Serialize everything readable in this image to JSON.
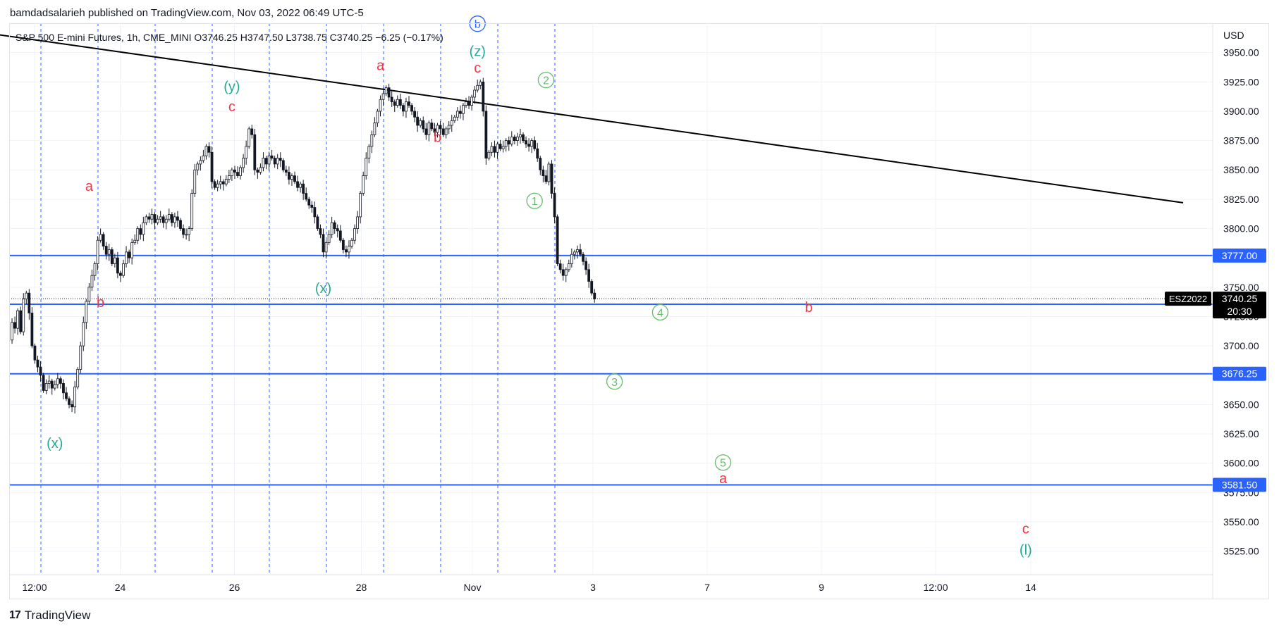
{
  "header": {
    "published": "bamdadsalarieh published on TradingView.com, Nov 03, 2022 06:49 UTC-5"
  },
  "legend": {
    "symbol": "S&P 500 E-mini Futures, 1h, CME_MINI",
    "open": "O3746.25",
    "high": "H3747.50",
    "low": "L3738.75",
    "close": "C3740.25",
    "change": "−6.25 (−0.17%)"
  },
  "footer": {
    "brand": "TradingView",
    "logo_icon": "tradingview-logo-icon"
  },
  "colors": {
    "candle": "#131722",
    "hline": "#2962ff",
    "trendline": "#000000",
    "vline": "#2962ff",
    "label_red": "#f23645",
    "label_teal": "#22ab94",
    "label_green": "#66bb6a",
    "label_blue": "#2962ff",
    "grid": "#f0f3fa"
  },
  "chart_data": {
    "type": "candlestick",
    "currency": "USD",
    "y_range": [
      3505,
      3975
    ],
    "y_ticks": [
      3525,
      3550,
      3575,
      3600,
      3625,
      3650,
      3675,
      3700,
      3725,
      3750,
      3775,
      3800,
      3825,
      3850,
      3875,
      3900,
      3925,
      3950,
      3975
    ],
    "x_ticks": [
      "12:00",
      "24",
      "26",
      "28",
      "Nov",
      "3",
      "7",
      "9",
      "12:00",
      "14"
    ],
    "last_price": {
      "symbol": "ESZ2022",
      "value": "3740.25",
      "countdown": "20:30"
    },
    "horizontal_levels": [
      3777.0,
      3735.5,
      3676.25,
      3581.5
    ],
    "horizontal_level_labels": [
      "3777.00",
      "3735.50",
      "3676.25",
      "3581.50"
    ],
    "trendline": {
      "start": [
        -0.4,
        3967
      ],
      "end": [
        18.5,
        3822
      ]
    },
    "vertical_lines_day": [
      0.5,
      1.5,
      2.5,
      3.5,
      4.5,
      5.5,
      6.5,
      7.5,
      8.5,
      9.5
    ],
    "candles_close_path": [
      [
        0.0,
        3705
      ],
      [
        0.05,
        3720
      ],
      [
        0.1,
        3715
      ],
      [
        0.15,
        3730
      ],
      [
        0.2,
        3712
      ],
      [
        0.25,
        3740
      ],
      [
        0.3,
        3745
      ],
      [
        0.35,
        3728
      ],
      [
        0.4,
        3700
      ],
      [
        0.45,
        3688
      ],
      [
        0.5,
        3682
      ],
      [
        0.55,
        3675
      ],
      [
        0.6,
        3662
      ],
      [
        0.65,
        3668
      ],
      [
        0.7,
        3670
      ],
      [
        0.75,
        3664
      ],
      [
        0.8,
        3667
      ],
      [
        0.85,
        3672
      ],
      [
        0.9,
        3668
      ],
      [
        0.95,
        3660
      ],
      [
        1.0,
        3655
      ],
      [
        1.05,
        3650
      ],
      [
        1.1,
        3648
      ],
      [
        1.15,
        3665
      ],
      [
        1.2,
        3680
      ],
      [
        1.25,
        3700
      ],
      [
        1.3,
        3720
      ],
      [
        1.35,
        3738
      ],
      [
        1.4,
        3750
      ],
      [
        1.45,
        3760
      ],
      [
        1.5,
        3770
      ],
      [
        1.55,
        3790
      ],
      [
        1.6,
        3795
      ],
      [
        1.65,
        3785
      ],
      [
        1.7,
        3778
      ],
      [
        1.75,
        3782
      ],
      [
        1.8,
        3770
      ],
      [
        1.85,
        3775
      ],
      [
        1.9,
        3762
      ],
      [
        1.95,
        3760
      ],
      [
        2.0,
        3770
      ],
      [
        2.05,
        3780
      ],
      [
        2.1,
        3775
      ],
      [
        2.15,
        3788
      ],
      [
        2.2,
        3790
      ],
      [
        2.25,
        3800
      ],
      [
        2.3,
        3795
      ],
      [
        2.35,
        3805
      ],
      [
        2.4,
        3810
      ],
      [
        2.45,
        3808
      ],
      [
        2.5,
        3812
      ],
      [
        2.55,
        3805
      ],
      [
        2.6,
        3808
      ],
      [
        2.65,
        3810
      ],
      [
        2.7,
        3805
      ],
      [
        2.75,
        3808
      ],
      [
        2.8,
        3812
      ],
      [
        2.85,
        3805
      ],
      [
        2.9,
        3810
      ],
      [
        2.95,
        3807
      ],
      [
        3.0,
        3800
      ],
      [
        3.05,
        3795
      ],
      [
        3.1,
        3795
      ],
      [
        3.15,
        3800
      ],
      [
        3.2,
        3830
      ],
      [
        3.25,
        3850
      ],
      [
        3.3,
        3855
      ],
      [
        3.35,
        3858
      ],
      [
        3.4,
        3862
      ],
      [
        3.45,
        3870
      ],
      [
        3.5,
        3865
      ],
      [
        3.55,
        3840
      ],
      [
        3.6,
        3835
      ],
      [
        3.65,
        3838
      ],
      [
        3.7,
        3840
      ],
      [
        3.75,
        3838
      ],
      [
        3.8,
        3842
      ],
      [
        3.85,
        3845
      ],
      [
        3.9,
        3850
      ],
      [
        3.95,
        3848
      ],
      [
        4.0,
        3845
      ],
      [
        4.05,
        3852
      ],
      [
        4.1,
        3860
      ],
      [
        4.15,
        3870
      ],
      [
        4.2,
        3885
      ],
      [
        4.25,
        3880
      ],
      [
        4.3,
        3850
      ],
      [
        4.35,
        3848
      ],
      [
        4.4,
        3852
      ],
      [
        4.45,
        3860
      ],
      [
        4.5,
        3855
      ],
      [
        4.55,
        3862
      ],
      [
        4.6,
        3860
      ],
      [
        4.65,
        3855
      ],
      [
        4.7,
        3860
      ],
      [
        4.75,
        3858
      ],
      [
        4.8,
        3850
      ],
      [
        4.85,
        3848
      ],
      [
        4.9,
        3842
      ],
      [
        4.95,
        3845
      ],
      [
        5.0,
        3840
      ],
      [
        5.05,
        3835
      ],
      [
        5.1,
        3838
      ],
      [
        5.15,
        3830
      ],
      [
        5.2,
        3825
      ],
      [
        5.25,
        3820
      ],
      [
        5.3,
        3818
      ],
      [
        5.35,
        3810
      ],
      [
        5.4,
        3800
      ],
      [
        5.45,
        3795
      ],
      [
        5.5,
        3780
      ],
      [
        5.55,
        3788
      ],
      [
        5.6,
        3795
      ],
      [
        5.65,
        3805
      ],
      [
        5.7,
        3800
      ],
      [
        5.75,
        3798
      ],
      [
        5.8,
        3790
      ],
      [
        5.85,
        3782
      ],
      [
        5.9,
        3780
      ],
      [
        5.95,
        3785
      ],
      [
        6.0,
        3790
      ],
      [
        6.05,
        3800
      ],
      [
        6.1,
        3810
      ],
      [
        6.15,
        3830
      ],
      [
        6.2,
        3845
      ],
      [
        6.25,
        3860
      ],
      [
        6.3,
        3870
      ],
      [
        6.35,
        3880
      ],
      [
        6.4,
        3890
      ],
      [
        6.45,
        3900
      ],
      [
        6.5,
        3910
      ],
      [
        6.55,
        3915
      ],
      [
        6.6,
        3920
      ],
      [
        6.65,
        3912
      ],
      [
        6.7,
        3908
      ],
      [
        6.75,
        3905
      ],
      [
        6.8,
        3910
      ],
      [
        6.85,
        3905
      ],
      [
        6.9,
        3900
      ],
      [
        6.95,
        3908
      ],
      [
        7.0,
        3905
      ],
      [
        7.05,
        3900
      ],
      [
        7.1,
        3895
      ],
      [
        7.15,
        3888
      ],
      [
        7.2,
        3892
      ],
      [
        7.25,
        3885
      ],
      [
        7.3,
        3880
      ],
      [
        7.35,
        3890
      ],
      [
        7.4,
        3885
      ],
      [
        7.45,
        3882
      ],
      [
        7.5,
        3888
      ],
      [
        7.55,
        3885
      ],
      [
        7.6,
        3880
      ],
      [
        7.65,
        3885
      ],
      [
        7.7,
        3888
      ],
      [
        7.75,
        3892
      ],
      [
        7.8,
        3895
      ],
      [
        7.85,
        3900
      ],
      [
        7.9,
        3898
      ],
      [
        7.95,
        3905
      ],
      [
        8.0,
        3908
      ],
      [
        8.05,
        3905
      ],
      [
        8.1,
        3912
      ],
      [
        8.15,
        3918
      ],
      [
        8.2,
        3922
      ],
      [
        8.25,
        3925
      ],
      [
        8.3,
        3900
      ],
      [
        8.35,
        3860
      ],
      [
        8.4,
        3865
      ],
      [
        8.45,
        3870
      ],
      [
        8.5,
        3865
      ],
      [
        8.55,
        3872
      ],
      [
        8.6,
        3868
      ],
      [
        8.65,
        3870
      ],
      [
        8.7,
        3875
      ],
      [
        8.75,
        3872
      ],
      [
        8.8,
        3878
      ],
      [
        8.85,
        3875
      ],
      [
        8.9,
        3878
      ],
      [
        8.95,
        3880
      ],
      [
        9.0,
        3875
      ],
      [
        9.05,
        3872
      ],
      [
        9.1,
        3870
      ],
      [
        9.15,
        3875
      ],
      [
        9.2,
        3868
      ],
      [
        9.25,
        3860
      ],
      [
        9.3,
        3850
      ],
      [
        9.35,
        3845
      ],
      [
        9.4,
        3840
      ],
      [
        9.45,
        3855
      ],
      [
        9.5,
        3830
      ],
      [
        9.55,
        3810
      ],
      [
        9.6,
        3770
      ],
      [
        9.65,
        3765
      ],
      [
        9.7,
        3760
      ],
      [
        9.75,
        3765
      ],
      [
        9.8,
        3770
      ],
      [
        9.85,
        3778
      ],
      [
        9.9,
        3780
      ],
      [
        9.95,
        3782
      ],
      [
        10.0,
        3778
      ],
      [
        10.05,
        3772
      ],
      [
        10.1,
        3765
      ],
      [
        10.15,
        3755
      ],
      [
        10.2,
        3745
      ],
      [
        10.25,
        3740
      ]
    ],
    "annotations": [
      {
        "text": "(x)",
        "day": 0.8,
        "price": 3613,
        "color": "teal",
        "circle": false
      },
      {
        "text": "a",
        "day": 1.4,
        "price": 3832,
        "color": "red",
        "circle": false
      },
      {
        "text": "b",
        "day": 1.6,
        "price": 3733,
        "color": "red",
        "circle": false
      },
      {
        "text": "(y)",
        "day": 3.9,
        "price": 3917,
        "color": "teal",
        "circle": false
      },
      {
        "text": "c",
        "day": 3.9,
        "price": 3900,
        "color": "red",
        "circle": false
      },
      {
        "text": "(x)",
        "day": 5.5,
        "price": 3745,
        "color": "teal",
        "circle": false
      },
      {
        "text": "a",
        "day": 6.5,
        "price": 3935,
        "color": "red",
        "circle": false
      },
      {
        "text": "b",
        "day": 7.5,
        "price": 3874,
        "color": "red",
        "circle": false
      },
      {
        "text": "b",
        "day": 8.2,
        "price": 3971,
        "color": "blue",
        "circle": true
      },
      {
        "text": "(z)",
        "day": 8.2,
        "price": 3947,
        "color": "teal",
        "circle": false
      },
      {
        "text": "c",
        "day": 8.2,
        "price": 3933,
        "color": "red",
        "circle": false
      },
      {
        "text": "2",
        "day": 9.4,
        "price": 3923,
        "color": "green",
        "circle": true
      },
      {
        "text": "1",
        "day": 9.2,
        "price": 3820,
        "color": "green",
        "circle": true
      },
      {
        "text": "4",
        "day": 11.4,
        "price": 3725,
        "color": "green",
        "circle": true
      },
      {
        "text": "b",
        "day": 14.0,
        "price": 3729,
        "color": "red",
        "circle": false
      },
      {
        "text": "3",
        "day": 10.6,
        "price": 3666,
        "color": "green",
        "circle": true
      },
      {
        "text": "5",
        "day": 12.5,
        "price": 3597,
        "color": "green",
        "circle": true
      },
      {
        "text": "a",
        "day": 12.5,
        "price": 3583,
        "color": "red",
        "circle": false
      },
      {
        "text": "c",
        "day": 17.8,
        "price": 3540,
        "color": "red",
        "circle": false
      },
      {
        "text": "(l)",
        "day": 17.8,
        "price": 3522,
        "color": "teal",
        "circle": false
      }
    ]
  }
}
